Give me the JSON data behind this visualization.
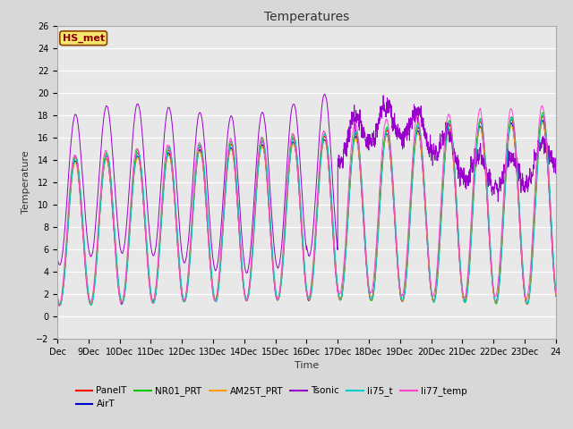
{
  "title": "Temperatures",
  "xlabel": "Time",
  "ylabel": "Temperature",
  "ylim": [
    -2,
    26
  ],
  "background_color": "#d8d8d8",
  "plot_bg": "#e8e8e8",
  "annotation_text": "HS_met",
  "annotation_color": "#8b0000",
  "annotation_bg": "#f5e66e",
  "annotation_border": "#8b4000",
  "series_colors": {
    "PanelT": "#ff0000",
    "AirT": "#0000cc",
    "NR01_PRT": "#00cc00",
    "AM25T_PRT": "#ff9900",
    "Tsonic": "#9900cc",
    "li75_t": "#00cccc",
    "li77_temp": "#ff44cc"
  },
  "x_tick_labels": [
    "Dec",
    "9Dec",
    "10Dec",
    "11Dec",
    "12Dec",
    "13Dec",
    "14Dec",
    "15Dec",
    "16Dec",
    "17Dec",
    "18Dec",
    "19Dec",
    "20Dec",
    "21Dec",
    "22Dec",
    "23Dec 24"
  ],
  "legend_entries": [
    "PanelT",
    "AirT",
    "NR01_PRT",
    "AM25T_PRT",
    "Tsonic",
    "li75_t",
    "li77_temp"
  ],
  "title_fontsize": 10,
  "axis_fontsize": 8,
  "tick_fontsize": 7
}
